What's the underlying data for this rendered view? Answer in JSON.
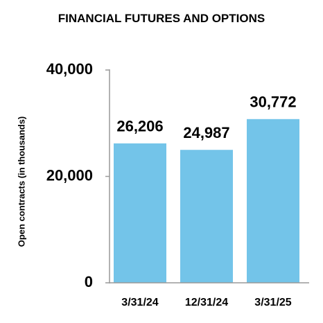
{
  "chart_data": {
    "type": "bar",
    "title": "FINANCIAL FUTURES AND OPTIONS",
    "y_label": "Open contracts (in thousands)",
    "categories": [
      "3/31/24",
      "12/31/24",
      "3/31/25"
    ],
    "values": [
      26206,
      24987,
      30772
    ],
    "value_labels": [
      "26,206",
      "24,987",
      "30,772"
    ],
    "color": "#73c4e9",
    "ylim": [
      0,
      40000
    ],
    "yticks": [
      0,
      {
        "value": 20000,
        "label": "20,000"
      },
      {
        "value": 40000,
        "label": "40,000"
      }
    ],
    "grid": false
  }
}
